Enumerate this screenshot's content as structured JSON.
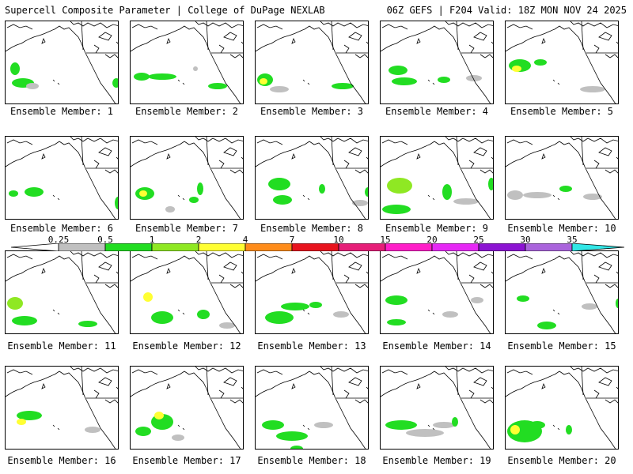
{
  "header": {
    "title_left": "Supercell Composite Parameter | College of DuPage NEXLAB",
    "title_right": "06Z GEFS | F204 Valid: 18Z MON NOV 24 2025"
  },
  "members": [
    {
      "label": "Ensemble Member: 1"
    },
    {
      "label": "Ensemble Member: 2"
    },
    {
      "label": "Ensemble Member: 3"
    },
    {
      "label": "Ensemble Member: 4"
    },
    {
      "label": "Ensemble Member: 5"
    },
    {
      "label": "Ensemble Member: 6"
    },
    {
      "label": "Ensemble Member: 7"
    },
    {
      "label": "Ensemble Member: 8"
    },
    {
      "label": "Ensemble Member: 9"
    },
    {
      "label": "Ensemble Member: 10"
    },
    {
      "label": "Ensemble Member: 11"
    },
    {
      "label": "Ensemble Member: 12"
    },
    {
      "label": "Ensemble Member: 13"
    },
    {
      "label": "Ensemble Member: 14"
    },
    {
      "label": "Ensemble Member: 15"
    },
    {
      "label": "Ensemble Member: 16"
    },
    {
      "label": "Ensemble Member: 17"
    },
    {
      "label": "Ensemble Member: 18"
    },
    {
      "label": "Ensemble Member: 19"
    },
    {
      "label": "Ensemble Member: 20"
    }
  ],
  "colorbar": {
    "ticks": [
      "0.25",
      "0.5",
      "1",
      "2",
      "4",
      "7",
      "10",
      "15",
      "20",
      "25",
      "30",
      "35"
    ],
    "colors": [
      "#ffffff",
      "#c0c0c0",
      "#22dd22",
      "#8fe823",
      "#ffff33",
      "#ff8c1a",
      "#e8141e",
      "#e61e78",
      "#ff1ec8",
      "#e628f5",
      "#8c14d2",
      "#aa64dc",
      "#32e6e6"
    ]
  }
}
